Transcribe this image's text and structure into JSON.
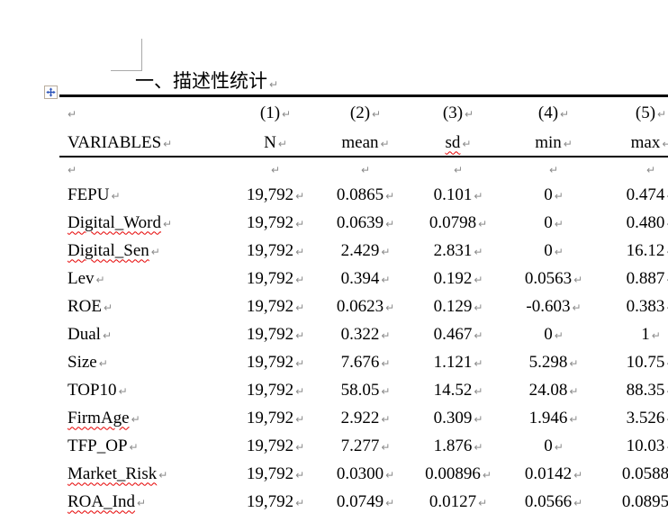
{
  "heading": {
    "text": "一、描述性统计"
  },
  "marks": {
    "pilcrow": "↵"
  },
  "icons": {
    "table_move_handle": "four-way-move-arrow",
    "text_boundary_corner": "corner-crop-mark"
  },
  "colors": {
    "text": "#000000",
    "pilcrow": "#8b8b8b",
    "spellcheck_squiggle": "#e60000",
    "table_border": "#000000",
    "move_handle_arrow": "#2b52b8",
    "boundary_mark": "#a9a9a9"
  },
  "table": {
    "header_row1": [
      "",
      "(1)",
      "(2)",
      "(3)",
      "(4)",
      "(5)"
    ],
    "header_row2": [
      {
        "text": "VARIABLES",
        "squiggly": false
      },
      {
        "text": "N",
        "squiggly": false
      },
      {
        "text": "mean",
        "squiggly": false
      },
      {
        "text": "sd",
        "squiggly": true
      },
      {
        "text": "min",
        "squiggly": false
      },
      {
        "text": "max",
        "squiggly": false
      }
    ],
    "rows": [
      {
        "label": "FEPU",
        "squiggly": false,
        "values": [
          "19,792",
          "0.0865",
          "0.101",
          "0",
          "0.474"
        ]
      },
      {
        "label": "Digital_Word",
        "squiggly": true,
        "values": [
          "19,792",
          "0.0639",
          "0.0798",
          "0",
          "0.480"
        ]
      },
      {
        "label": "Digital_Sen",
        "squiggly": true,
        "values": [
          "19,792",
          "2.429",
          "2.831",
          "0",
          "16.12"
        ]
      },
      {
        "label": "Lev",
        "squiggly": false,
        "values": [
          "19,792",
          "0.394",
          "0.192",
          "0.0563",
          "0.887"
        ]
      },
      {
        "label": "ROE",
        "squiggly": false,
        "values": [
          "19,792",
          "0.0623",
          "0.129",
          "-0.603",
          "0.383"
        ]
      },
      {
        "label": "Dual",
        "squiggly": false,
        "values": [
          "19,792",
          "0.322",
          "0.467",
          "0",
          "1"
        ]
      },
      {
        "label": "Size",
        "squiggly": false,
        "values": [
          "19,792",
          "7.676",
          "1.121",
          "5.298",
          "10.75"
        ]
      },
      {
        "label": "TOP10",
        "squiggly": false,
        "values": [
          "19,792",
          "58.05",
          "14.52",
          "24.08",
          "88.35"
        ]
      },
      {
        "label": "FirmAge",
        "squiggly": true,
        "values": [
          "19,792",
          "2.922",
          "0.309",
          "1.946",
          "3.526"
        ]
      },
      {
        "label": "TFP_OP",
        "squiggly": false,
        "values": [
          "19,792",
          "7.277",
          "1.876",
          "0",
          "10.03"
        ]
      },
      {
        "label": "Market_Risk",
        "squiggly": true,
        "values": [
          "19,792",
          "0.0300",
          "0.00896",
          "0.0142",
          "0.0588"
        ]
      },
      {
        "label": "ROA_Ind",
        "squiggly": true,
        "values": [
          "19,792",
          "0.0749",
          "0.0127",
          "0.0566",
          "0.0895"
        ]
      }
    ]
  }
}
